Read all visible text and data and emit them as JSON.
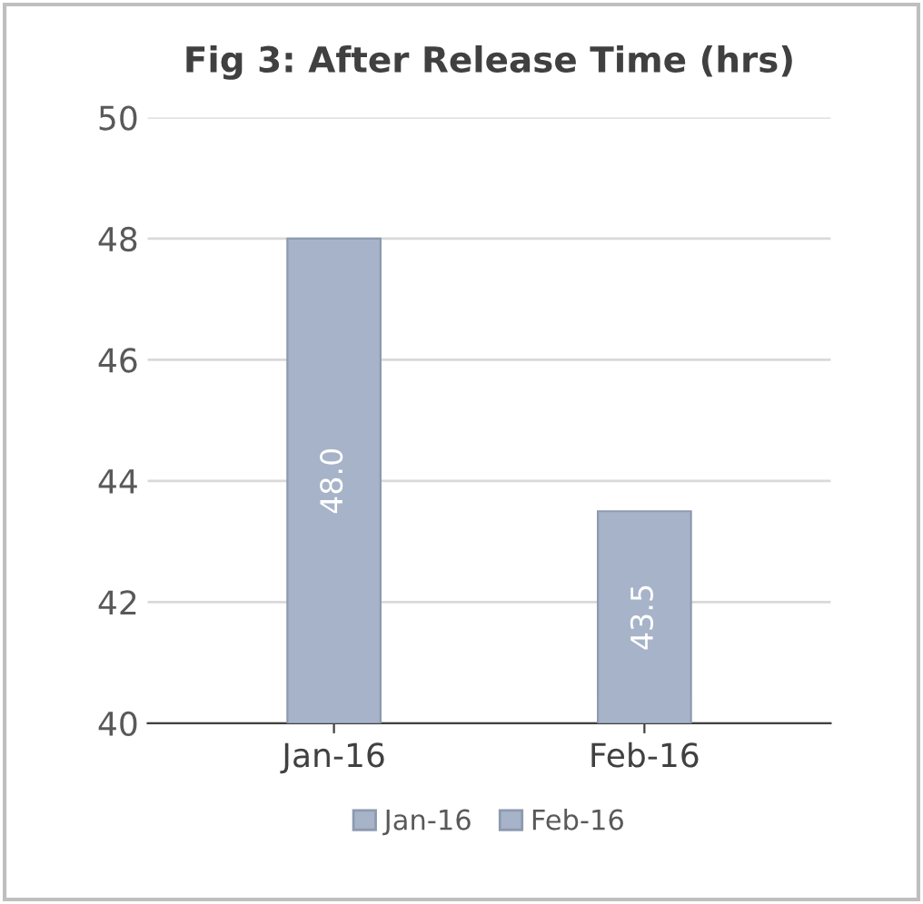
{
  "chart_data": {
    "type": "bar",
    "title": "Fig 3: After Release Time (hrs)",
    "categories": [
      "Jan-16",
      "Feb-16"
    ],
    "series": [
      {
        "name": "Jan-16",
        "color": "#a7b3c8",
        "values": [
          48.0,
          null
        ],
        "value_labels": [
          "48.0",
          null
        ]
      },
      {
        "name": "Feb-16",
        "color": "#a7b3c8",
        "values": [
          null,
          43.5
        ],
        "value_labels": [
          null,
          "43.5"
        ]
      }
    ],
    "ylim": [
      40,
      50
    ],
    "yticks": [
      40,
      42,
      44,
      46,
      48,
      50
    ],
    "grid": "y",
    "legend": "bottom"
  }
}
